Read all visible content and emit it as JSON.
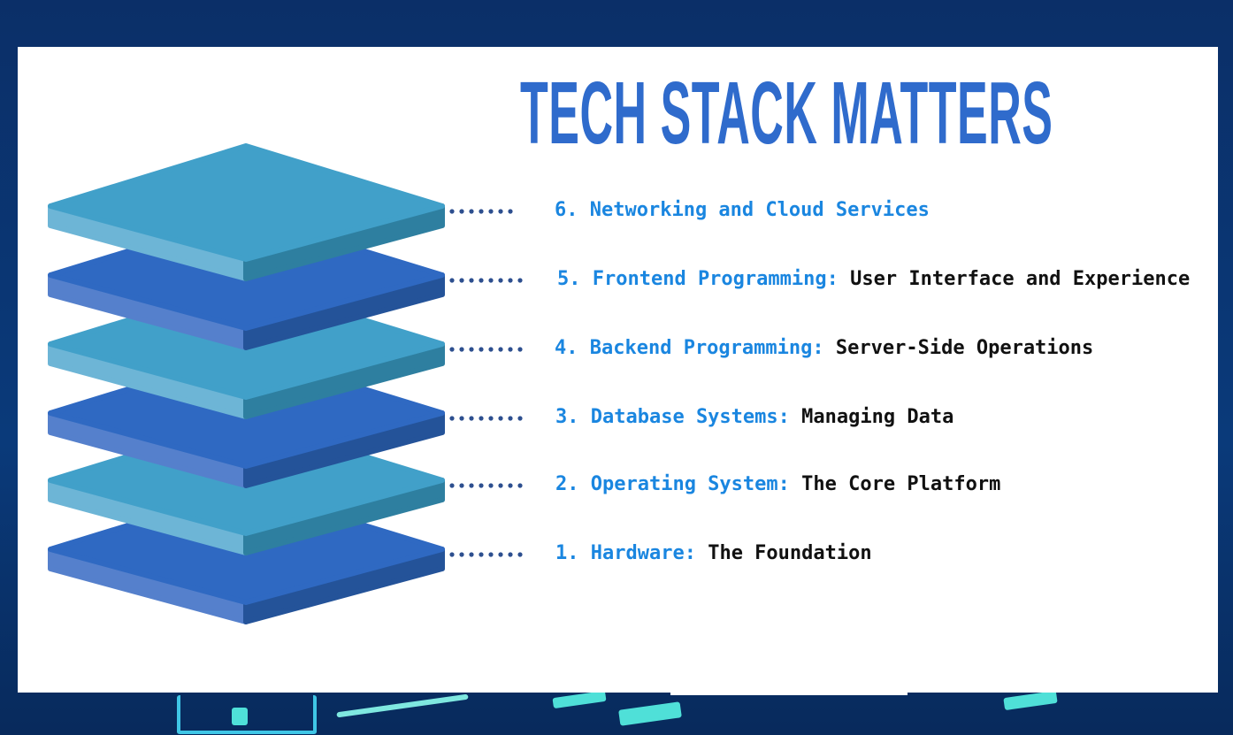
{
  "title": "TECH STACK MATTERS",
  "colors": {
    "title": "#2f6bcc",
    "label": "#1a86e0",
    "description": "#111111",
    "layer_light": "#41a0c9",
    "layer_dark": "#2f69c2",
    "dots": "#2d4f8f",
    "background": "#0b2f68"
  },
  "layers": [
    {
      "label": "6. Networking and Cloud Services",
      "description": "",
      "shade": "light"
    },
    {
      "label": "5. Frontend Programming:",
      "description": "User Interface and Experience",
      "shade": "dark"
    },
    {
      "label": "4. Backend Programming:",
      "description": "Server-Side Operations",
      "shade": "light"
    },
    {
      "label": "3. Database Systems:",
      "description": "Managing Data",
      "shade": "dark"
    },
    {
      "label": "2. Operating System:",
      "description": "The Core Platform",
      "shade": "light"
    },
    {
      "label": "1. Hardware:",
      "description": "The Foundation",
      "shade": "dark"
    }
  ]
}
